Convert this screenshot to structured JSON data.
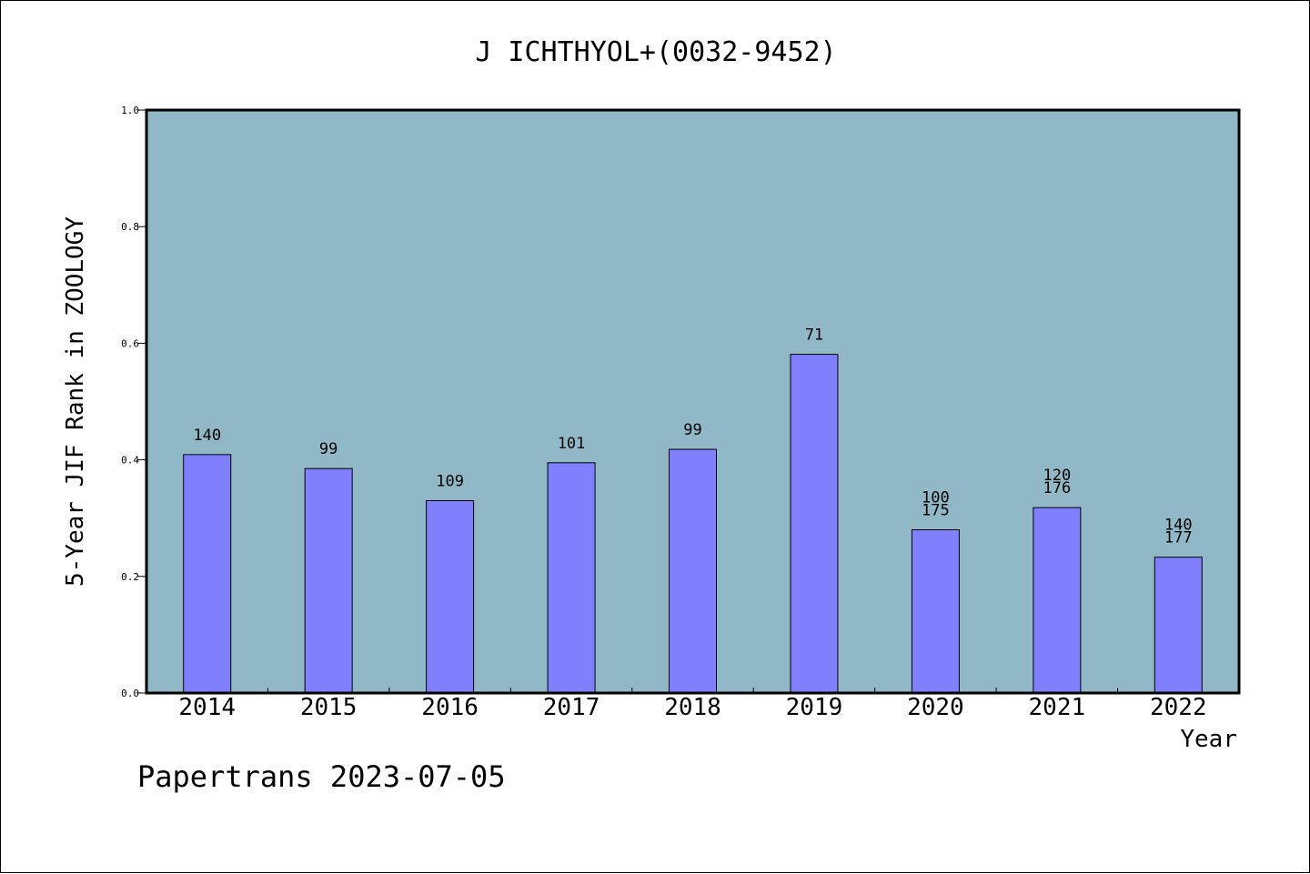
{
  "chart_data": {
    "type": "bar",
    "title": "J ICHTHYOL+(0032-9452)",
    "xlabel": "Year",
    "ylabel": "5-Year JIF Rank in ZOOLOGY",
    "ylim": [
      0,
      1.0
    ],
    "yticks": [
      "0.0",
      "0.2",
      "0.4",
      "0.6",
      "0.8",
      "1.0"
    ],
    "categories": [
      "2014",
      "2015",
      "2016",
      "2017",
      "2018",
      "2019",
      "2020",
      "2021",
      "2022"
    ],
    "values": [
      0.409,
      0.385,
      0.33,
      0.395,
      0.418,
      0.581,
      0.28,
      0.318,
      0.233
    ],
    "labels": [
      [
        "140"
      ],
      [
        "99"
      ],
      [
        "109"
      ],
      [
        "101"
      ],
      [
        "99"
      ],
      [
        "71"
      ],
      [
        "100",
        "175"
      ],
      [
        "120",
        "176"
      ],
      [
        "140",
        "177"
      ]
    ],
    "grid": false,
    "colors": {
      "plot_background": "#90b8c6",
      "bar_fill": "#8080ff",
      "bar_stroke": "#000000"
    }
  },
  "footer": {
    "text": "Papertrans 2023-07-05"
  }
}
